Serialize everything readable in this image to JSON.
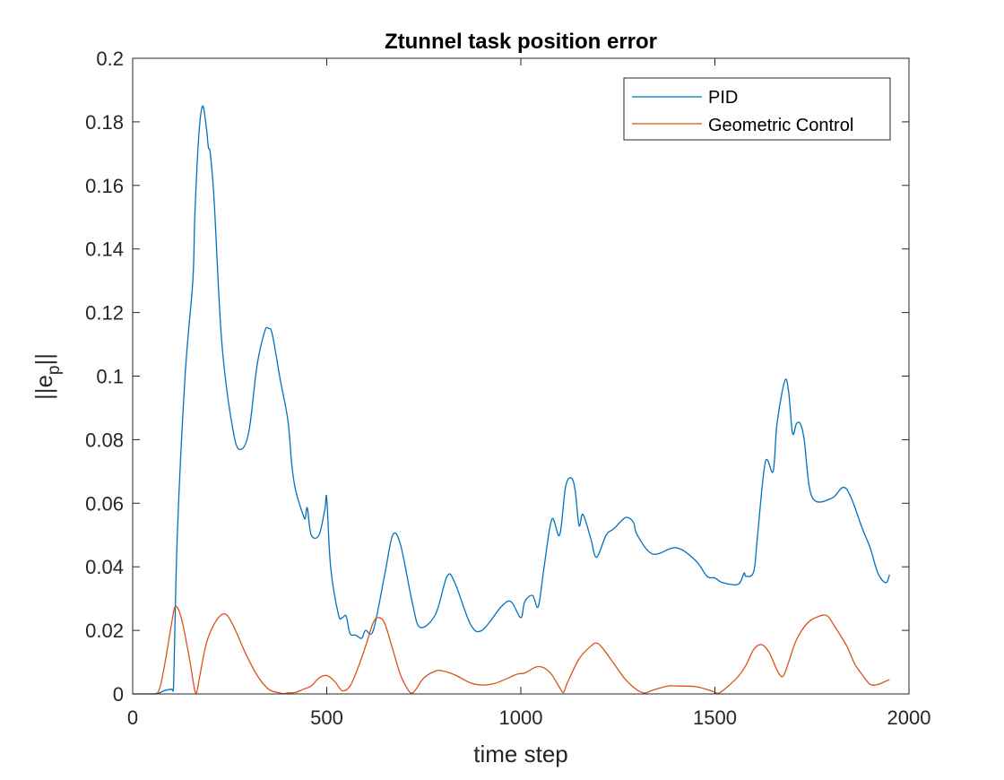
{
  "chart_data": {
    "type": "line",
    "title": "Ztunnel task position error",
    "xlabel": "time step",
    "ylabel_main": "||e",
    "ylabel_sub": "p",
    "ylabel_end": "||",
    "xlim": [
      0,
      2000
    ],
    "ylim": [
      0,
      0.2
    ],
    "xticks": [
      0,
      500,
      1000,
      1500,
      2000
    ],
    "xtick_labels": [
      "0",
      "500",
      "1000",
      "1500",
      "2000"
    ],
    "yticks": [
      0,
      0.02,
      0.04,
      0.06,
      0.08,
      0.1,
      0.12,
      0.14,
      0.16,
      0.18,
      0.2
    ],
    "ytick_labels": [
      "0",
      "0.02",
      "0.04",
      "0.06",
      "0.08",
      "0.1",
      "0.12",
      "0.14",
      "0.16",
      "0.18",
      "0.2"
    ],
    "grid": false,
    "legend_position": "top-right",
    "series": [
      {
        "name": "PID",
        "color": "#0072BD",
        "x": [
          0,
          60,
          80,
          100,
          105,
          115,
          135,
          155,
          160,
          170,
          180,
          190,
          195,
          200,
          210,
          230,
          260,
          280,
          300,
          320,
          340,
          350,
          360,
          380,
          400,
          410,
          420,
          440,
          445,
          450,
          460,
          480,
          495,
          500,
          510,
          530,
          540,
          550,
          560,
          575,
          590,
          600,
          620,
          650,
          670,
          690,
          720,
          740,
          780,
          810,
          830,
          870,
          900,
          950,
          975,
          1000,
          1010,
          1030,
          1045,
          1060,
          1080,
          1100,
          1115,
          1130,
          1140,
          1150,
          1160,
          1180,
          1195,
          1220,
          1240,
          1270,
          1290,
          1300,
          1340,
          1400,
          1450,
          1480,
          1500,
          1520,
          1560,
          1575,
          1580,
          1600,
          1610,
          1630,
          1650,
          1660,
          1680,
          1690,
          1700,
          1710,
          1720,
          1730,
          1750,
          1800,
          1830,
          1850,
          1880,
          1900,
          1920,
          1940,
          1950
        ],
        "values": [
          0,
          0,
          0.001,
          0.0015,
          0.0015,
          0.05,
          0.1,
          0.13,
          0.15,
          0.175,
          0.185,
          0.178,
          0.172,
          0.17,
          0.155,
          0.11,
          0.082,
          0.077,
          0.083,
          0.103,
          0.114,
          0.115,
          0.113,
          0.099,
          0.086,
          0.072,
          0.064,
          0.056,
          0.0555,
          0.0585,
          0.05,
          0.05,
          0.058,
          0.0615,
          0.04,
          0.025,
          0.024,
          0.0245,
          0.019,
          0.0185,
          0.0175,
          0.02,
          0.02,
          0.038,
          0.05,
          0.047,
          0.029,
          0.021,
          0.025,
          0.037,
          0.035,
          0.022,
          0.02,
          0.0275,
          0.029,
          0.024,
          0.029,
          0.031,
          0.0275,
          0.04,
          0.055,
          0.05,
          0.065,
          0.068,
          0.064,
          0.053,
          0.0565,
          0.049,
          0.043,
          0.05,
          0.052,
          0.0555,
          0.054,
          0.05,
          0.044,
          0.046,
          0.042,
          0.037,
          0.0365,
          0.035,
          0.0345,
          0.038,
          0.037,
          0.0385,
          0.05,
          0.073,
          0.07,
          0.085,
          0.0985,
          0.095,
          0.082,
          0.085,
          0.085,
          0.08,
          0.062,
          0.0615,
          0.065,
          0.062,
          0.052,
          0.046,
          0.038,
          0.035,
          0.0375
        ]
      },
      {
        "name": "Geometric Control",
        "color": "#D95319",
        "x": [
          0,
          55,
          70,
          85,
          100,
          110,
          125,
          145,
          160,
          165,
          175,
          190,
          210,
          230,
          245,
          265,
          290,
          320,
          350,
          380,
          390,
          400,
          420,
          440,
          460,
          480,
          500,
          520,
          540,
          560,
          580,
          600,
          620,
          635,
          650,
          670,
          690,
          710,
          720,
          730,
          750,
          780,
          800,
          830,
          870,
          900,
          930,
          960,
          990,
          1010,
          1040,
          1060,
          1080,
          1100,
          1110,
          1120,
          1150,
          1180,
          1195,
          1210,
          1240,
          1270,
          1300,
          1320,
          1340,
          1380,
          1400,
          1450,
          1490,
          1500,
          1510,
          1530,
          1560,
          1580,
          1600,
          1620,
          1640,
          1660,
          1675,
          1690,
          1710,
          1740,
          1770,
          1790,
          1810,
          1840,
          1860,
          1880,
          1900,
          1920,
          1940,
          1950
        ],
        "values": [
          0,
          0,
          0.002,
          0.011,
          0.022,
          0.0275,
          0.024,
          0.012,
          0.001,
          0.0005,
          0.007,
          0.016,
          0.022,
          0.025,
          0.0245,
          0.02,
          0.013,
          0.006,
          0.0015,
          0.0003,
          0.0001,
          0.0003,
          0.0005,
          0.0015,
          0.0025,
          0.005,
          0.0058,
          0.004,
          0.001,
          0.0025,
          0.008,
          0.015,
          0.0225,
          0.024,
          0.022,
          0.014,
          0.006,
          0.0012,
          0.0003,
          0.0015,
          0.005,
          0.0072,
          0.0072,
          0.006,
          0.0035,
          0.0028,
          0.0032,
          0.0046,
          0.0062,
          0.0066,
          0.0085,
          0.0082,
          0.006,
          0.002,
          0.0005,
          0.0035,
          0.011,
          0.015,
          0.016,
          0.0145,
          0.0095,
          0.0045,
          0.0012,
          0.0003,
          0.0012,
          0.0025,
          0.0025,
          0.0023,
          0.001,
          0.0005,
          0.0002,
          0.002,
          0.0055,
          0.009,
          0.014,
          0.0155,
          0.013,
          0.0075,
          0.0055,
          0.01,
          0.017,
          0.0225,
          0.0245,
          0.0245,
          0.021,
          0.015,
          0.0095,
          0.006,
          0.003,
          0.003,
          0.004,
          0.0045
        ]
      }
    ]
  }
}
